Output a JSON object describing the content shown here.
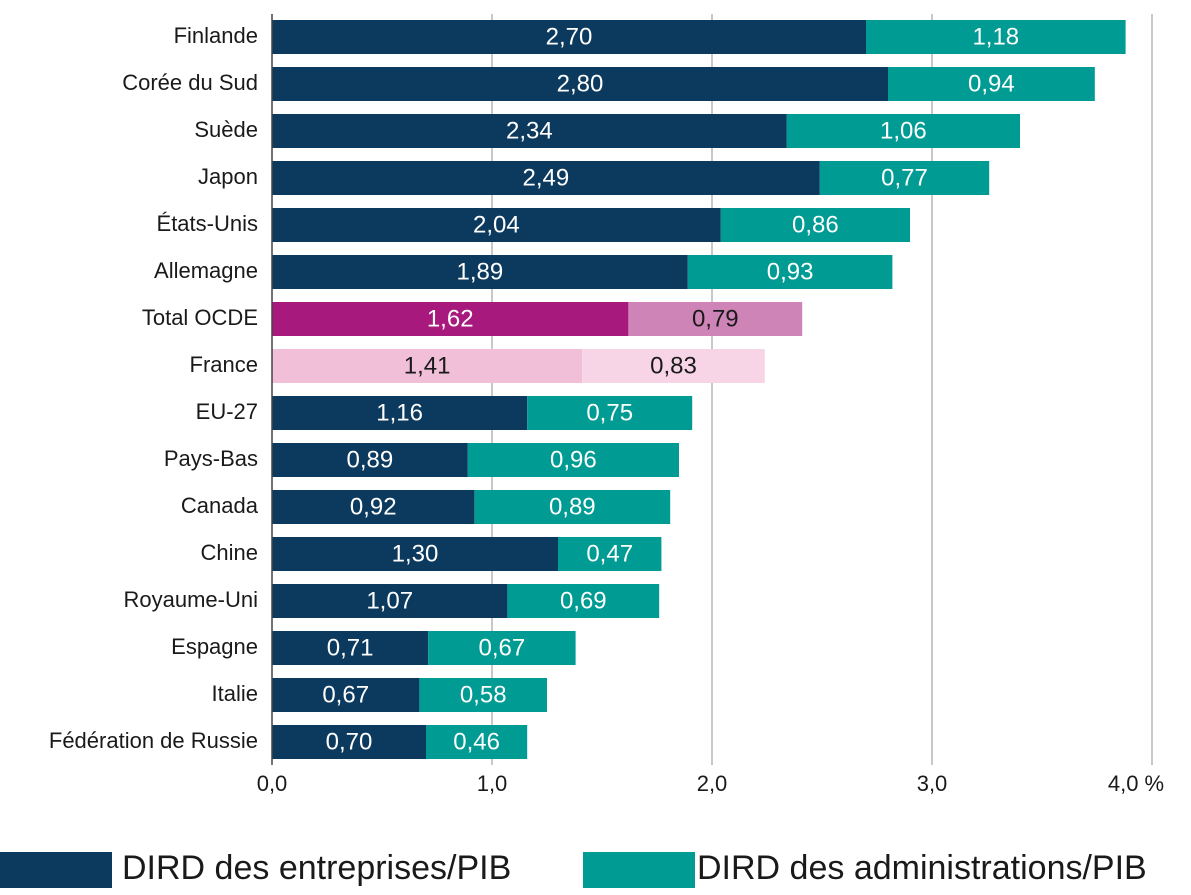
{
  "chart_data": {
    "type": "stacked-barh",
    "categories": [
      "Finlande",
      "Corée du Sud",
      "Suède",
      "Japon",
      "États-Unis",
      "Allemagne",
      "Total OCDE",
      "France",
      "EU-27",
      "Pays-Bas",
      "Canada",
      "Chine",
      "Royaume-Uni",
      "Espagne",
      "Italie",
      "Fédération de Russie"
    ],
    "series": [
      {
        "name": "DIRD des entreprises/PIB",
        "color": "#0c3a5e",
        "colors": [
          "#0c3a5e",
          "#0c3a5e",
          "#0c3a5e",
          "#0c3a5e",
          "#0c3a5e",
          "#0c3a5e",
          "#a8197d",
          "#f2bfd9",
          "#0c3a5e",
          "#0c3a5e",
          "#0c3a5e",
          "#0c3a5e",
          "#0c3a5e",
          "#0c3a5e",
          "#0c3a5e",
          "#0c3a5e"
        ],
        "values": [
          2.7,
          2.8,
          2.34,
          2.49,
          2.04,
          1.89,
          1.62,
          1.41,
          1.16,
          0.89,
          0.92,
          1.3,
          1.07,
          0.71,
          0.67,
          0.7
        ],
        "value_labels": [
          "2,70",
          "2,80",
          "2,34",
          "2,49",
          "2,04",
          "1,89",
          "1,62",
          "1,41",
          "1,16",
          "0,89",
          "0,92",
          "1,30",
          "1,07",
          "0,71",
          "0,67",
          "0,70"
        ]
      },
      {
        "name": "DIRD des administrations/PIB",
        "color": "#009b93",
        "colors": [
          "#009b93",
          "#009b93",
          "#009b93",
          "#009b93",
          "#009b93",
          "#009b93",
          "#cf84b8",
          "#f7d5e6",
          "#009b93",
          "#009b93",
          "#009b93",
          "#009b93",
          "#009b93",
          "#009b93",
          "#009b93",
          "#009b93"
        ],
        "values": [
          1.18,
          0.94,
          1.06,
          0.77,
          0.86,
          0.93,
          0.79,
          0.83,
          0.75,
          0.96,
          0.89,
          0.47,
          0.69,
          0.67,
          0.58,
          0.46
        ],
        "value_labels": [
          "1,18",
          "0,94",
          "1,06",
          "0,77",
          "0,86",
          "0,93",
          "0,79",
          "0,83",
          "0,75",
          "0,96",
          "0,89",
          "0,47",
          "0,69",
          "0,67",
          "0,58",
          "0,46"
        ]
      }
    ],
    "xlim": [
      0,
      4
    ],
    "xticks": [
      {
        "value": 0,
        "label": "0,0"
      },
      {
        "value": 1,
        "label": "1,0"
      },
      {
        "value": 2,
        "label": "2,0"
      },
      {
        "value": 3,
        "label": "3,0"
      },
      {
        "value": 4,
        "label": "4,0 %"
      }
    ],
    "grid": true,
    "legend": "bottom"
  }
}
